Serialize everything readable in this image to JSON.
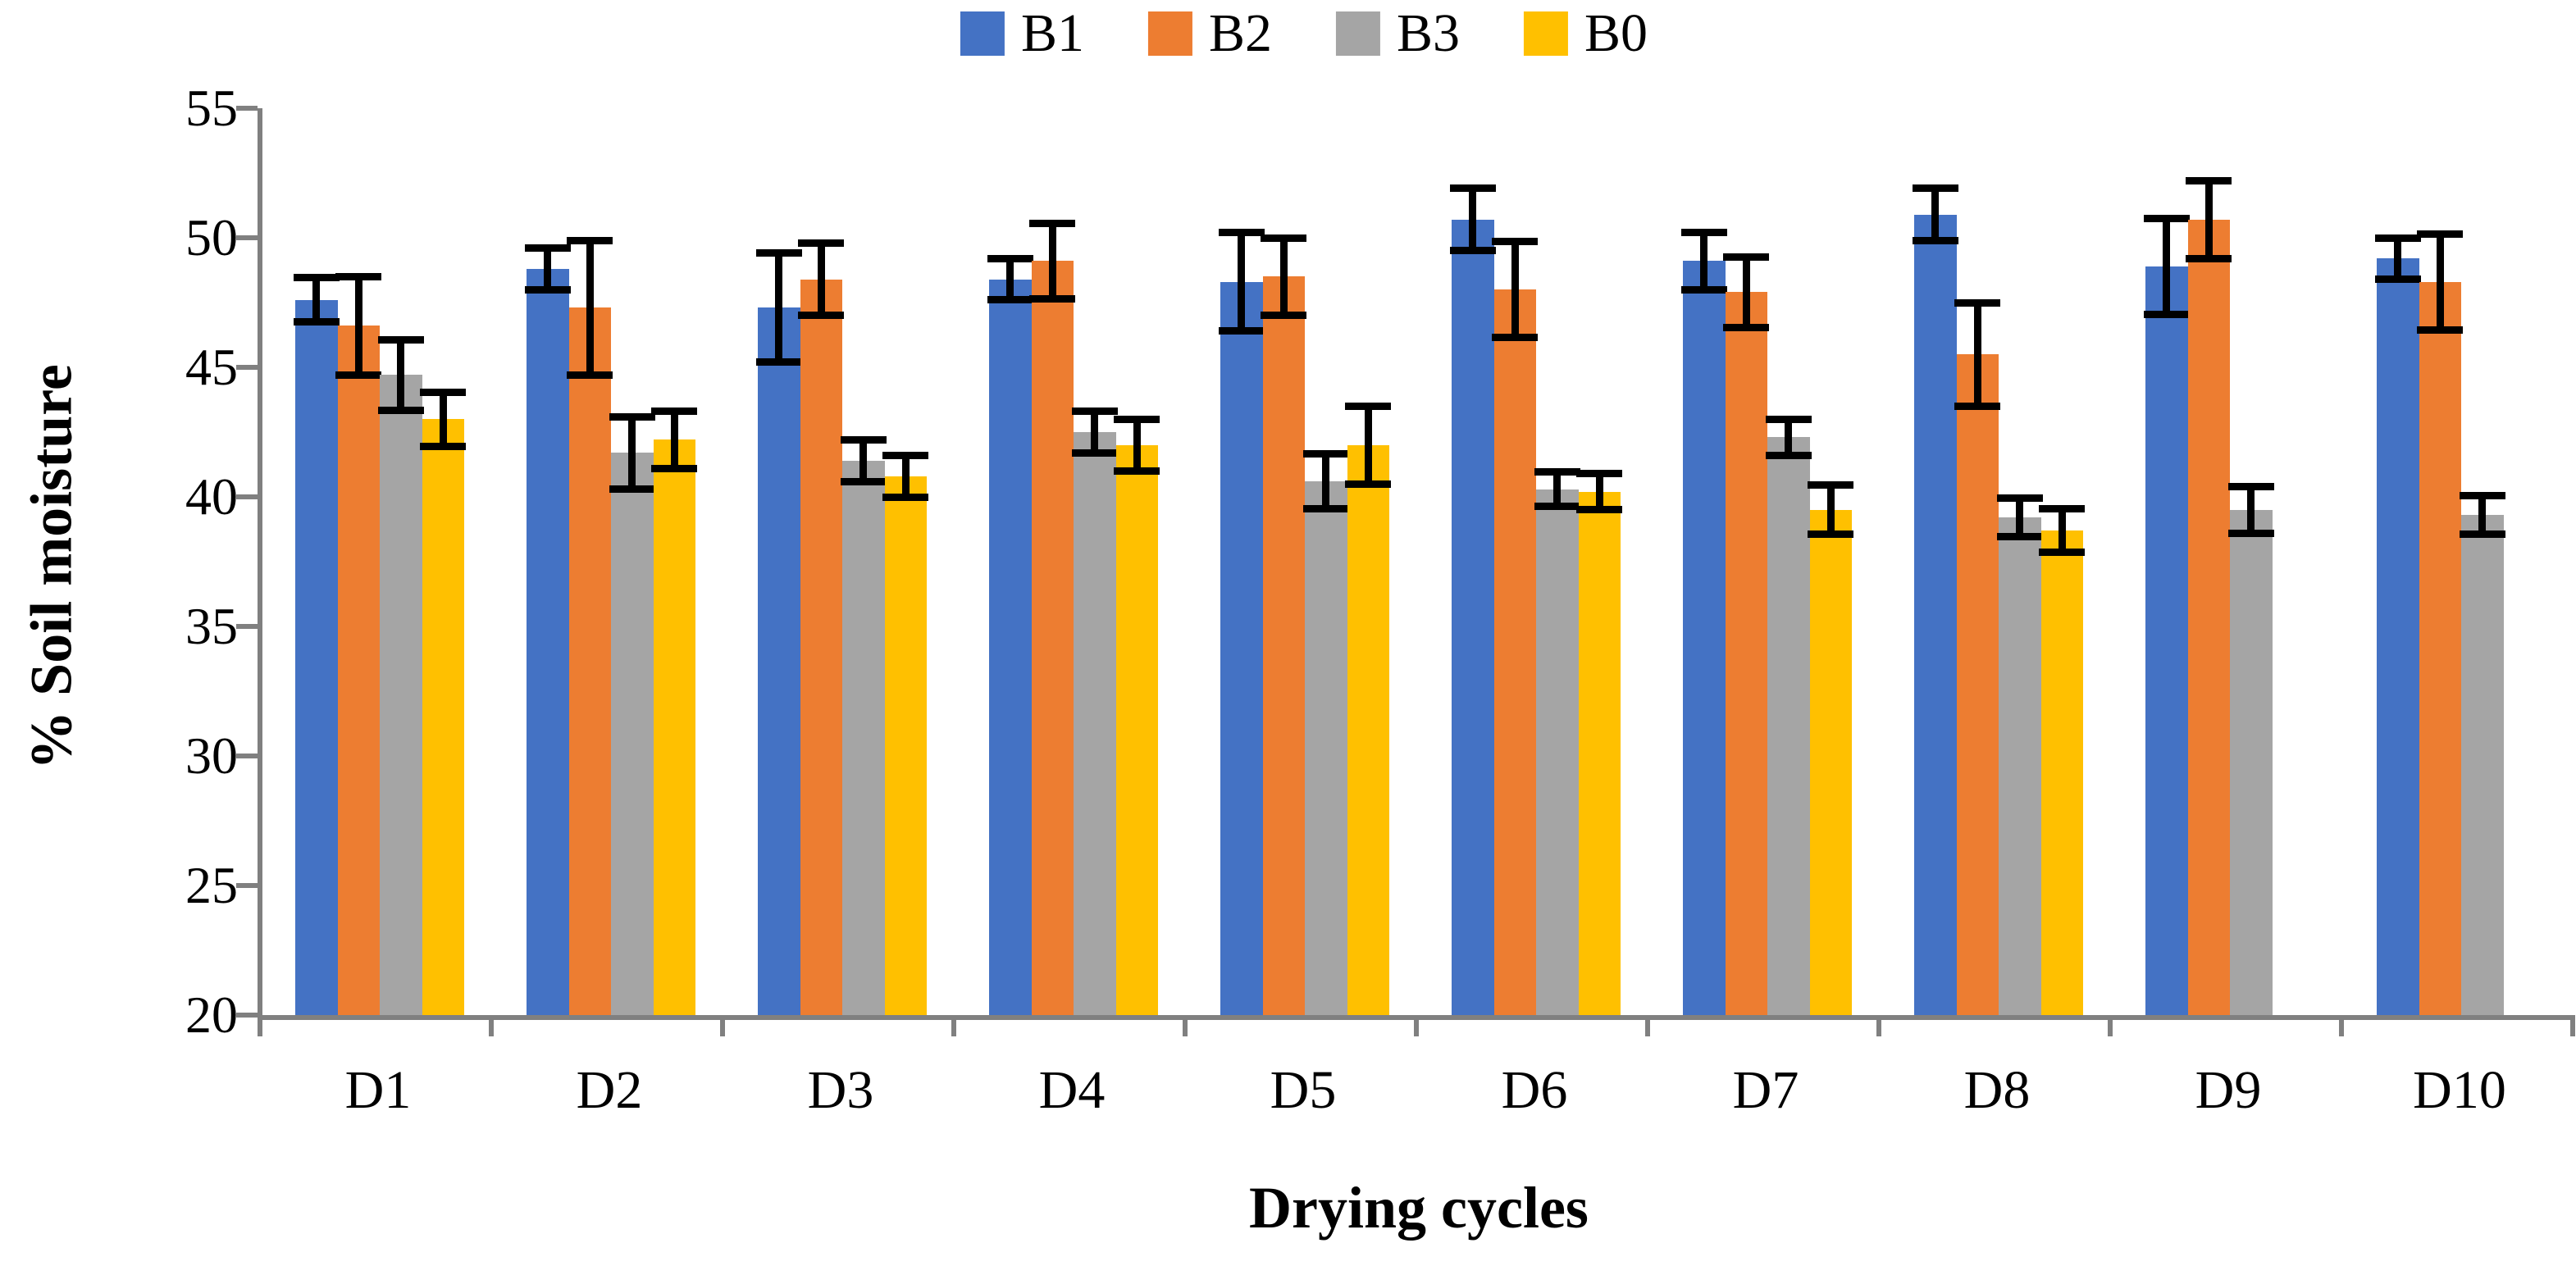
{
  "chart_data": {
    "type": "bar",
    "title": "",
    "xlabel": "Drying cycles",
    "ylabel": "% Soil moisture",
    "categories": [
      "D1",
      "D2",
      "D3",
      "D4",
      "D5",
      "D6",
      "D7",
      "D8",
      "D9",
      "D10"
    ],
    "series": [
      {
        "name": "B1",
        "color": "#4472C4",
        "values": [
          47.6,
          48.8,
          47.3,
          48.4,
          48.3,
          50.7,
          49.1,
          50.9,
          48.9,
          49.2
        ],
        "errors": [
          0.85,
          0.8,
          2.1,
          0.8,
          1.9,
          1.2,
          1.1,
          1.0,
          1.85,
          0.8
        ]
      },
      {
        "name": "B2",
        "color": "#ED7D31",
        "values": [
          46.6,
          47.3,
          48.4,
          49.1,
          48.5,
          48.0,
          47.9,
          45.5,
          50.7,
          48.3
        ],
        "errors": [
          1.9,
          2.6,
          1.4,
          1.45,
          1.5,
          1.85,
          1.35,
          2.0,
          1.5,
          1.85
        ]
      },
      {
        "name": "B3",
        "color": "#A5A5A5",
        "values": [
          44.7,
          41.7,
          41.4,
          42.5,
          40.6,
          40.3,
          42.3,
          39.2,
          39.5,
          39.3
        ],
        "errors": [
          1.35,
          1.4,
          0.8,
          0.8,
          1.05,
          0.65,
          0.7,
          0.75,
          0.9,
          0.75
        ]
      },
      {
        "name": "B0",
        "color": "#FFC000",
        "values": [
          43.0,
          42.2,
          40.8,
          42.0,
          42.0,
          40.2,
          39.5,
          38.7,
          null,
          null
        ],
        "errors": [
          1.05,
          1.1,
          0.8,
          1.0,
          1.5,
          0.7,
          0.95,
          0.85,
          null,
          null
        ]
      }
    ],
    "ylim": [
      20,
      55
    ],
    "yticks": [
      20,
      25,
      30,
      35,
      40,
      45,
      50,
      55
    ],
    "legend_position": "top-center",
    "grid": false,
    "error_bars": true,
    "axis_color": "#808080",
    "error_bar_color": "#000000",
    "bar_color_b1": "#4472C4",
    "bar_color_b2": "#ED7D31",
    "bar_color_b3": "#A5A5A5",
    "bar_color_b0": "#FFC000"
  }
}
